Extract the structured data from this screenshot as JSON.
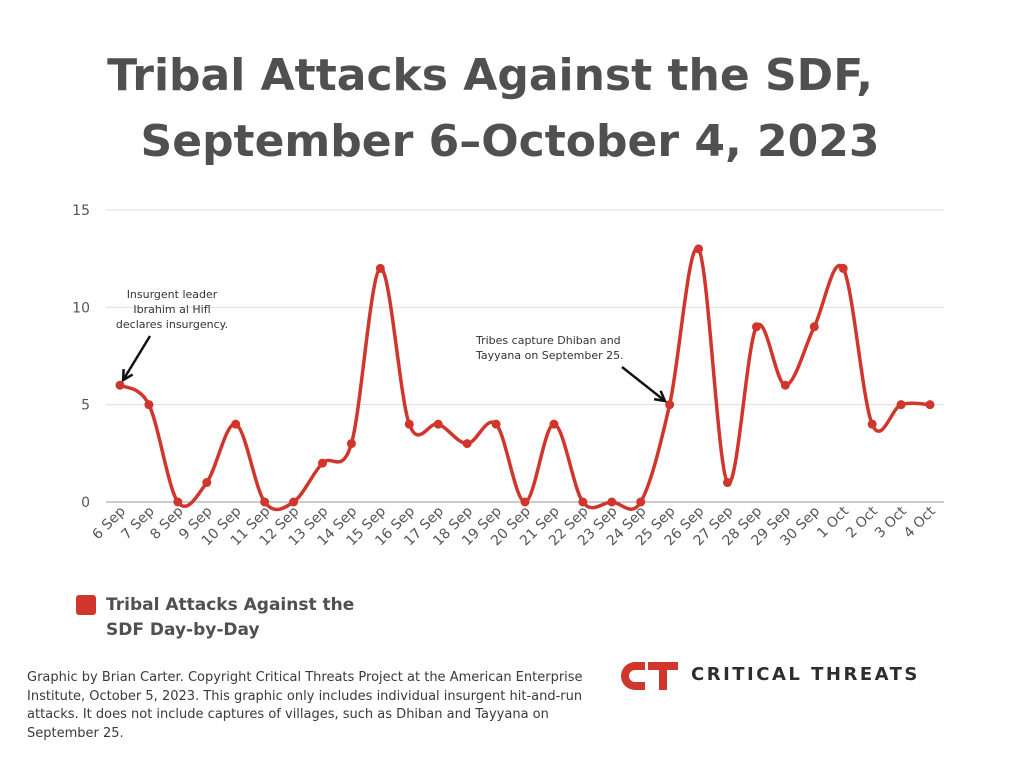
{
  "title": {
    "line1": "Tribal Attacks Against the SDF,",
    "line2": "September 6–October 4, 2023"
  },
  "chart_data": {
    "type": "line",
    "categories": [
      "6 Sep",
      "7 Sep",
      "8 Sep",
      "9 Sep",
      "10 Sep",
      "11 Sep",
      "12 Sep",
      "13 Sep",
      "14 Sep",
      "15 Sep",
      "16 Sep",
      "17 Sep",
      "18 Sep",
      "19 Sep",
      "20 Sep",
      "21 Sep",
      "22 Sep",
      "23 Sep",
      "24 Sep",
      "25 Sep",
      "26 Sep",
      "27 Sep",
      "28 Sep",
      "29 Sep",
      "30 Sep",
      "1 Oct",
      "2 Oct",
      "3 Oct",
      "4 Oct"
    ],
    "series": [
      {
        "name": "Tribal Attacks Against the SDF Day-by-Day",
        "values": [
          6,
          5,
          0,
          1,
          4,
          0,
          0,
          2,
          3,
          12,
          4,
          4,
          3,
          4,
          0,
          4,
          0,
          0,
          0,
          5,
          13,
          1,
          9,
          6,
          9,
          12,
          4,
          5,
          5
        ],
        "color": "#d0362c"
      }
    ],
    "yticks": [
      0,
      5,
      10,
      15
    ],
    "ylim": [
      0,
      15
    ],
    "grid": true,
    "annotations": [
      {
        "category": "6 Sep",
        "lines": [
          "Insurgent leader",
          "Ibrahim al Hifl",
          "declares insurgency."
        ]
      },
      {
        "category": "25 Sep",
        "lines": [
          "Tribes capture Dhiban and",
          "Tayyana on September 25."
        ]
      }
    ],
    "legend_position": "bottom-left"
  },
  "legend": {
    "label": "Tribal Attacks Against the SDF Day-by-Day",
    "color": "#d0362c"
  },
  "footnote": "Graphic by Brian Carter. Copyright Critical Threats Project at the American Enterprise Institute, October 5, 2023. This graphic only includes individual insurgent hit-and-run attacks. It does not include captures of villages, such as Dhiban and Tayyana on September 25.",
  "logo": {
    "mark": "CT",
    "text": "CRITICAL THREATS",
    "color": "#d0362c"
  }
}
